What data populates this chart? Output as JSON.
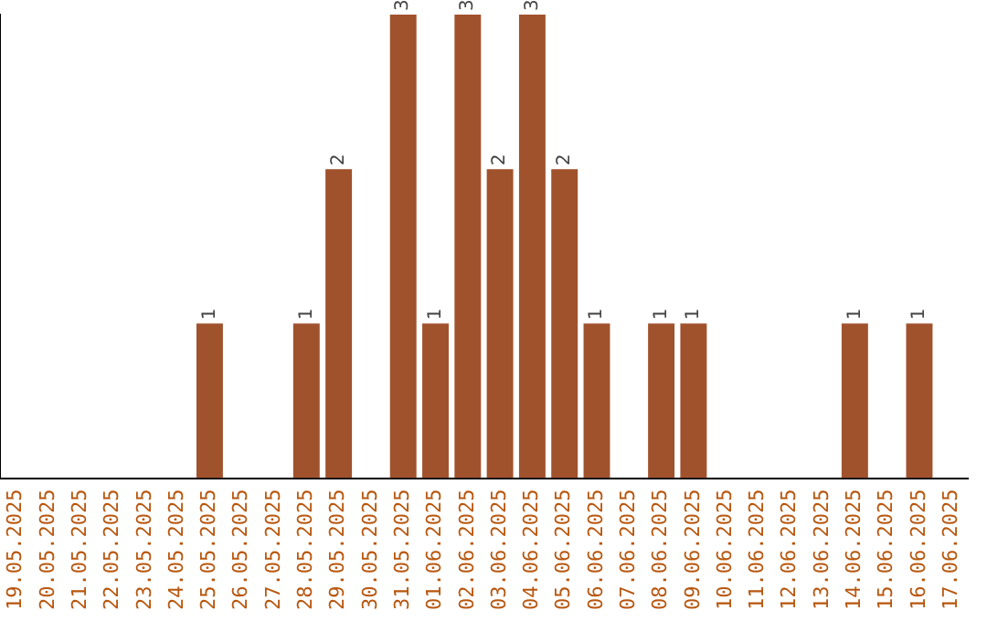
{
  "chart_data": {
    "type": "bar",
    "categories": [
      "19.05.2025",
      "20.05.2025",
      "21.05.2025",
      "22.05.2025",
      "23.05.2025",
      "24.05.2025",
      "25.05.2025",
      "26.05.2025",
      "27.05.2025",
      "28.05.2025",
      "29.05.2025",
      "30.05.2025",
      "31.05.2025",
      "01.06.2025",
      "02.06.2025",
      "03.06.2025",
      "04.06.2025",
      "05.06.2025",
      "06.06.2025",
      "07.06.2025",
      "08.06.2025",
      "09.06.2025",
      "10.06.2025",
      "11.06.2025",
      "12.06.2025",
      "13.06.2025",
      "14.06.2025",
      "15.06.2025",
      "16.06.2025",
      "17.06.2025"
    ],
    "values": [
      0,
      0,
      0,
      0,
      0,
      0,
      1,
      0,
      0,
      1,
      2,
      0,
      3,
      1,
      3,
      2,
      3,
      2,
      1,
      0,
      1,
      1,
      0,
      0,
      0,
      0,
      1,
      0,
      1,
      0
    ],
    "value_labels": [
      null,
      null,
      null,
      null,
      null,
      null,
      "1",
      null,
      null,
      "1",
      "2",
      null,
      "3",
      "1",
      "3",
      "2",
      "3",
      "2",
      "1",
      null,
      "1",
      "1",
      null,
      null,
      null,
      null,
      "1",
      null,
      "1",
      null
    ],
    "color": "#a0522d",
    "grid": false,
    "legend": false
  }
}
